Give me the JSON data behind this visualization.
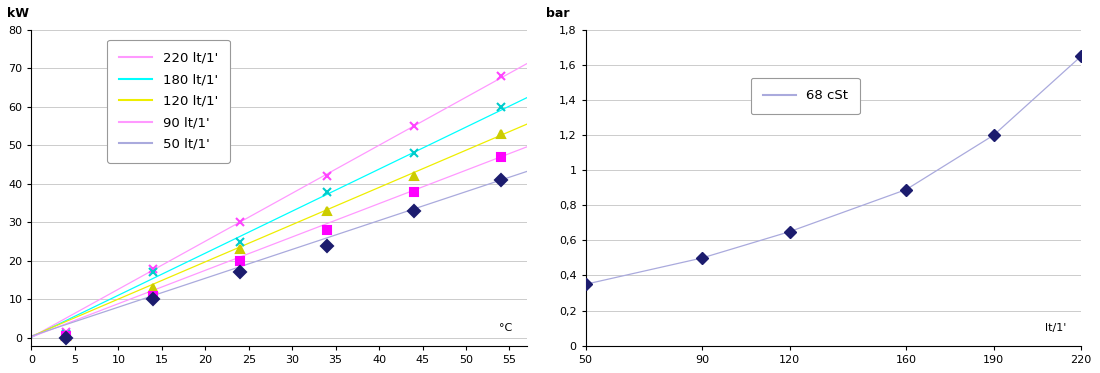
{
  "left": {
    "ylabel": "kW",
    "xlabel": "°C",
    "xlim": [
      0,
      57
    ],
    "ylim": [
      -2,
      80
    ],
    "xticks": [
      0,
      5,
      10,
      15,
      20,
      25,
      30,
      35,
      40,
      45,
      50,
      55
    ],
    "yticks": [
      0,
      10,
      20,
      30,
      40,
      50,
      60,
      70,
      80
    ],
    "series": [
      {
        "label": "220 lt/1'",
        "line_color": "#FF99FF",
        "marker": "x",
        "marker_color": "#FF44FF",
        "x": [
          4,
          14,
          24,
          34,
          44,
          54
        ],
        "y": [
          1.5,
          18,
          30,
          42,
          55,
          68
        ],
        "fit_x": [
          -2,
          58
        ],
        "fit_y": [
          -2.3,
          72.5
        ]
      },
      {
        "label": "180 lt/1'",
        "line_color": "#00FFFF",
        "marker": "x",
        "marker_color": "#00CCCC",
        "x": [
          4,
          14,
          24,
          34,
          44,
          54
        ],
        "y": [
          1.0,
          17,
          25,
          38,
          48,
          60
        ],
        "fit_x": [
          -2,
          58
        ],
        "fit_y": [
          -2.0,
          63.5
        ]
      },
      {
        "label": "120 lt/1'",
        "line_color": "#EEEE00",
        "marker": "^",
        "marker_color": "#CCCC00",
        "x": [
          4,
          14,
          24,
          34,
          44,
          54
        ],
        "y": [
          0.5,
          13,
          23,
          33,
          42,
          53
        ],
        "fit_x": [
          -2,
          58
        ],
        "fit_y": [
          -1.5,
          56.5
        ]
      },
      {
        "label": "90 lt/1'",
        "line_color": "#FF99FF",
        "marker": "s",
        "marker_color": "#FF00FF",
        "x": [
          4,
          14,
          24,
          34,
          44,
          54
        ],
        "y": [
          0.5,
          11,
          20,
          28,
          38,
          47
        ],
        "fit_x": [
          -2,
          58
        ],
        "fit_y": [
          -1.5,
          50.5
        ]
      },
      {
        "label": "50 lt/1'",
        "line_color": "#AAAADD",
        "marker": "D",
        "marker_color": "#1C1C6E",
        "x": [
          4,
          14,
          24,
          34,
          44,
          54
        ],
        "y": [
          0.0,
          10,
          17,
          24,
          33,
          41
        ],
        "fit_x": [
          -2,
          58
        ],
        "fit_y": [
          -1.0,
          44.0
        ]
      }
    ],
    "background": "#FFFFFF",
    "grid_color": "#CCCCCC"
  },
  "right": {
    "ylabel": "bar",
    "xlabel": "lt/1'",
    "xlim": [
      50,
      220
    ],
    "ylim": [
      0,
      1.8
    ],
    "xticks": [
      50,
      90,
      120,
      160,
      190,
      220
    ],
    "yticks": [
      0,
      0.2,
      0.4,
      0.6,
      0.8,
      1.0,
      1.2,
      1.4,
      1.6,
      1.8
    ],
    "ytick_labels": [
      "0",
      "0,2",
      "0,4",
      "0,6",
      "0,8",
      "1",
      "1,2",
      "1,4",
      "1,6",
      "1,8"
    ],
    "series": [
      {
        "label": "68 cSt",
        "line_color": "#AAAADD",
        "marker": "D",
        "marker_color": "#1C1C6E",
        "x": [
          50,
          90,
          120,
          160,
          190,
          220
        ],
        "y": [
          0.35,
          0.5,
          0.65,
          0.89,
          1.2,
          1.65
        ]
      }
    ],
    "background": "#FFFFFF",
    "grid_color": "#CCCCCC"
  }
}
